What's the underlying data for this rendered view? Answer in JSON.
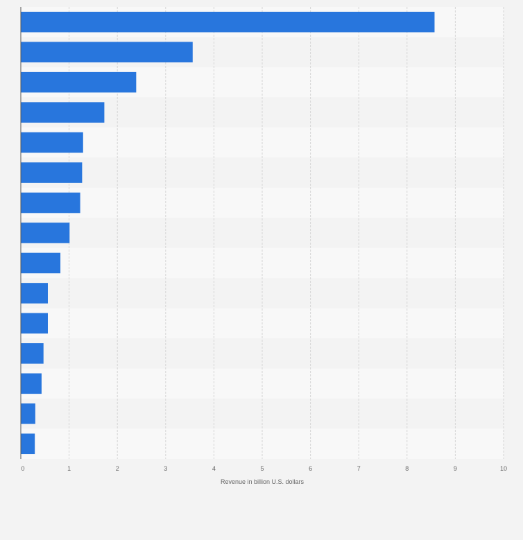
{
  "chart_data": {
    "type": "bar",
    "orientation": "horizontal",
    "categories": [
      "",
      "",
      "",
      "",
      "",
      "",
      "",
      "",
      "",
      "",
      "",
      "",
      "",
      "",
      ""
    ],
    "values": [
      8.57,
      3.56,
      2.39,
      1.73,
      1.29,
      1.27,
      1.23,
      1.01,
      0.82,
      0.56,
      0.56,
      0.47,
      0.43,
      0.3,
      0.29
    ],
    "xlabel": "Revenue in billion U.S. dollars",
    "ylabel": "",
    "xlim": [
      0,
      10
    ],
    "xticks": [
      0,
      1,
      2,
      3,
      4,
      5,
      6,
      7,
      8,
      9,
      10
    ],
    "grid": true,
    "colors": {
      "bar": "#2876dd",
      "grid": "#d5d5d5",
      "band_light": "#f8f8f8",
      "band_dark": "#f3f3f3",
      "text": "#666666",
      "axis": "#555555"
    }
  }
}
